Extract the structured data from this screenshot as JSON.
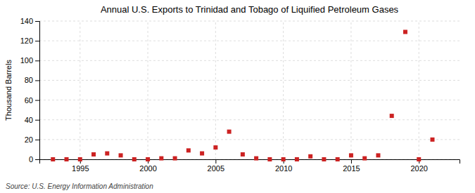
{
  "chart_data": {
    "type": "scatter",
    "title": "Annual U.S. Exports to Trinidad and Tobago of Liquified Petroleum Gases",
    "ylabel": "Thousand Barrels",
    "annotation": "Source: U.S. Energy Information Administration",
    "x": [
      1993,
      1994,
      1995,
      1996,
      1997,
      1998,
      1999,
      2000,
      2001,
      2002,
      2003,
      2004,
      2005,
      2006,
      2007,
      2008,
      2009,
      2010,
      2011,
      2012,
      2013,
      2014,
      2015,
      2016,
      2017,
      2018,
      2019,
      2020,
      2021
    ],
    "values": [
      0,
      0,
      0,
      5,
      6,
      4,
      0,
      0,
      1,
      1,
      9,
      6,
      12,
      28,
      5,
      1,
      0,
      0,
      0,
      3,
      0,
      0,
      4,
      1,
      4,
      44,
      129,
      0,
      20
    ],
    "color": "#cc2222",
    "marker": "square",
    "xlim": [
      1992,
      2023
    ],
    "ylim": [
      0,
      140
    ],
    "xticks": [
      1995,
      2000,
      2005,
      2010,
      2015,
      2020
    ],
    "yticks": [
      0,
      20,
      40,
      60,
      80,
      100,
      120,
      140
    ],
    "grid": true
  }
}
